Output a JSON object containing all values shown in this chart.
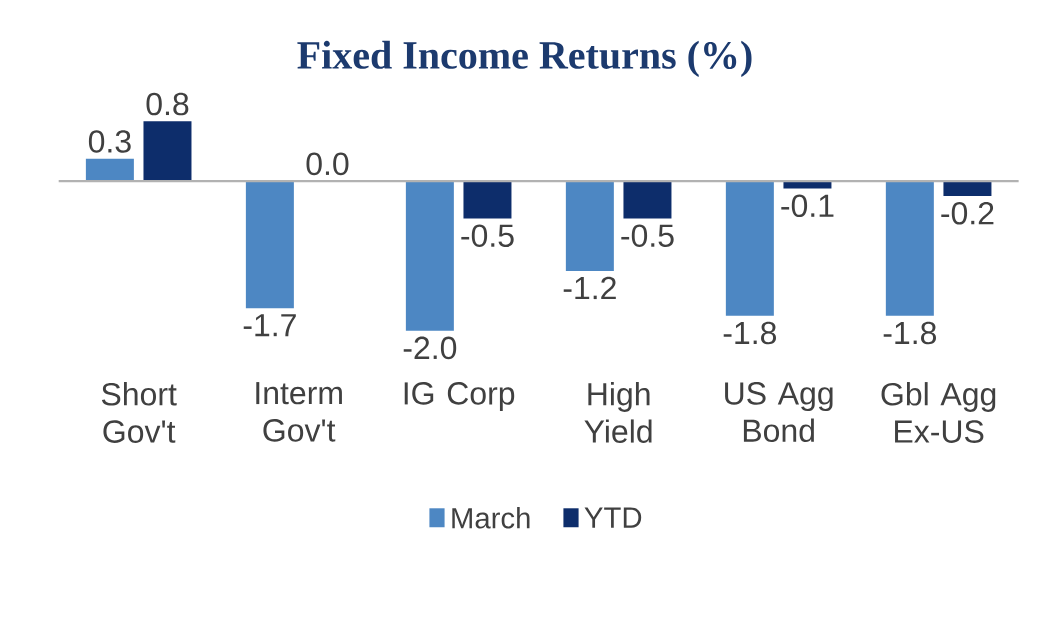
{
  "chart_data": {
    "type": "bar",
    "title": "Fixed Income Returns (%)",
    "categories": [
      "Short Gov't",
      "Interm Gov't",
      "IG Corp",
      "High Yield",
      "US Agg Bond",
      "Gbl Agg Ex-US"
    ],
    "series": [
      {
        "name": "March",
        "color": "#4d87c3",
        "values": [
          0.3,
          -1.7,
          -2.0,
          -1.2,
          -1.8,
          -1.8
        ],
        "value_labels": [
          "0.3",
          "-1.7",
          "-2.0",
          "-1.2",
          "-1.8",
          "-1.8"
        ]
      },
      {
        "name": "YTD",
        "color": "#0d2d6b",
        "values": [
          0.8,
          0.0,
          -0.5,
          -0.5,
          -0.1,
          -0.2
        ],
        "value_labels": [
          "0.8",
          "0.0",
          "-0.5",
          "-0.5",
          "-0.1",
          "-0.2"
        ]
      }
    ],
    "legend": "bottom",
    "grid": false,
    "tick_labels": "x"
  }
}
